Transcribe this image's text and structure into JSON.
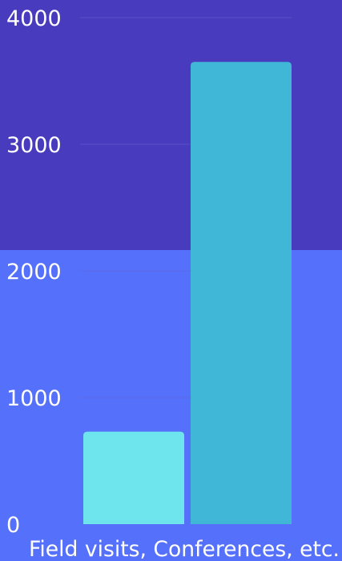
{
  "colors": {
    "background_top": "#483BBE",
    "background_bottom": "#5570FB",
    "text": "#FFFFFF",
    "gridline": "#6A60D0",
    "bar_1": "#6EE4EC",
    "bar_2": "#41B7D7"
  },
  "chart_data": {
    "type": "bar",
    "title": "",
    "xlabel": "",
    "ylabel": "",
    "categories": [
      "Field visits, Conferences, etc."
    ],
    "series": [
      {
        "values": [
          730
        ]
      },
      {
        "values": [
          3650
        ]
      }
    ],
    "ylim": [
      0,
      4000
    ],
    "yticks": [
      0,
      1000,
      2000,
      3000,
      4000
    ],
    "grid": true,
    "legend": "none"
  }
}
